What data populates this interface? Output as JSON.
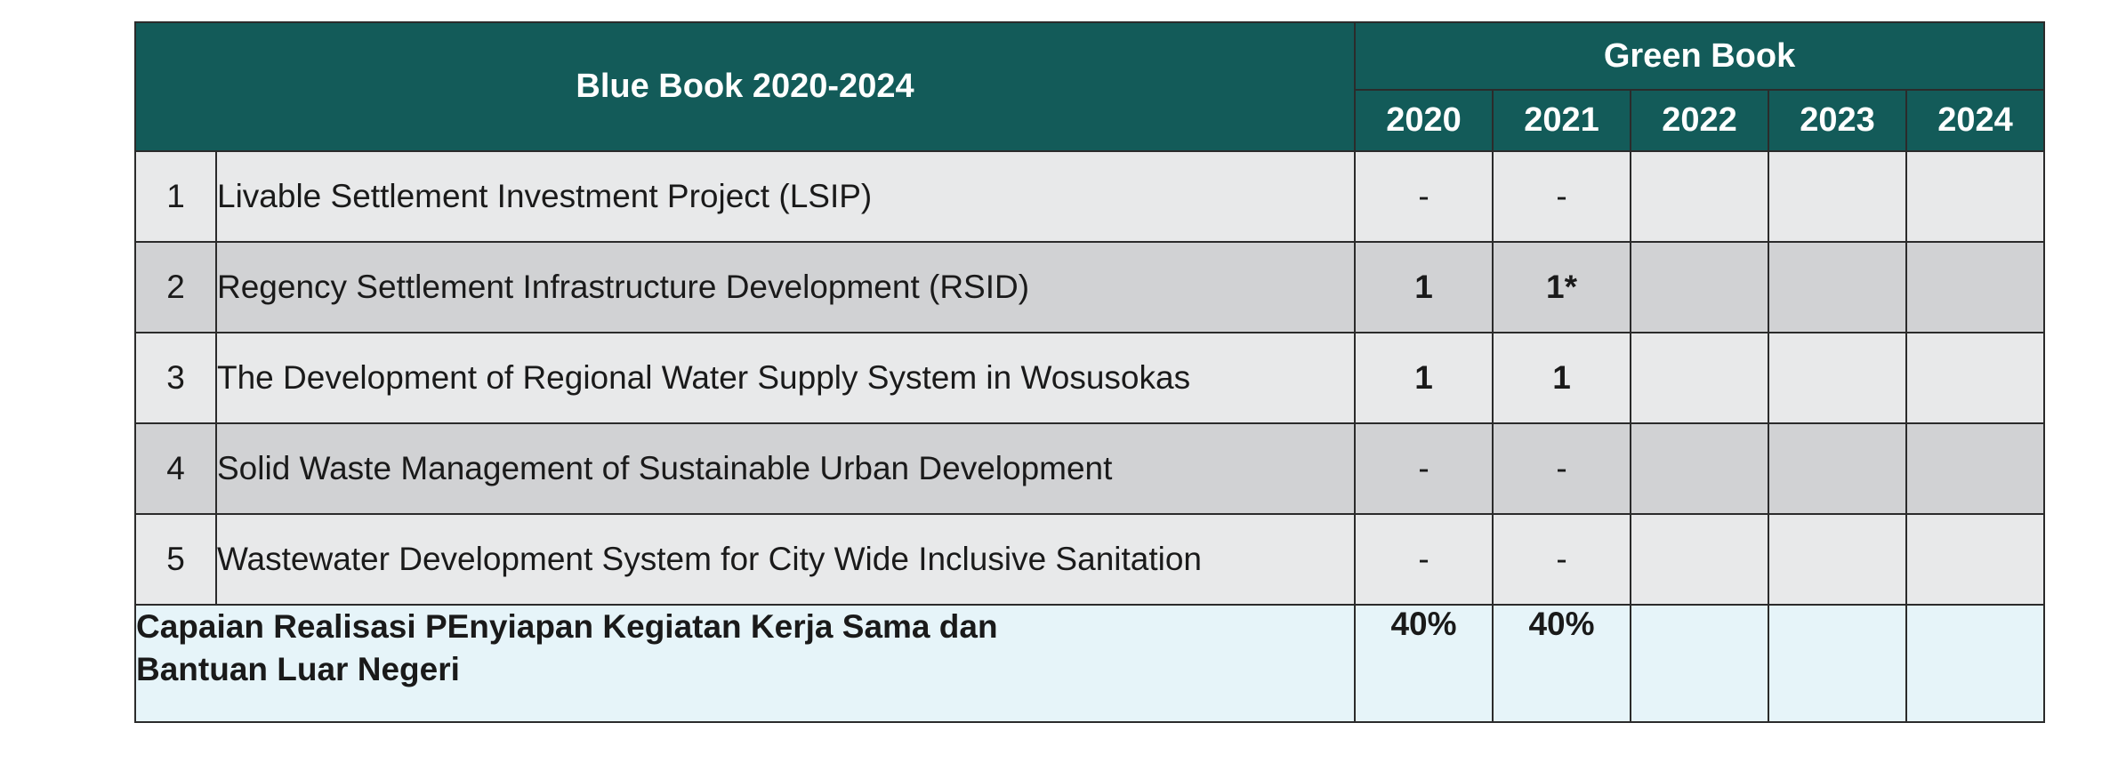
{
  "header": {
    "blue_book_title": "Blue Book 2020-2024",
    "green_book_title": "Green Book",
    "years": [
      "2020",
      "2021",
      "2022",
      "2023",
      "2024"
    ]
  },
  "rows": [
    {
      "no": "1",
      "name": "Livable Settlement Investment Project (LSIP)",
      "values": [
        "-",
        "-",
        "",
        "",
        ""
      ]
    },
    {
      "no": "2",
      "name": "Regency Settlement Infrastructure Development (RSID)",
      "values": [
        "1",
        "1*",
        "",
        "",
        ""
      ]
    },
    {
      "no": "3",
      "name": "The Development of Regional Water Supply System in Wosusokas",
      "values": [
        "1",
        "1",
        "",
        "",
        ""
      ]
    },
    {
      "no": "4",
      "name": "Solid Waste Management of Sustainable Urban Development",
      "values": [
        "-",
        "-",
        "",
        "",
        ""
      ]
    },
    {
      "no": "5",
      "name": "Wastewater Development System for City Wide Inclusive Sanitation",
      "values": [
        "-",
        "-",
        "",
        "",
        ""
      ]
    }
  ],
  "total": {
    "label_line1": "Capaian Realisasi PEnyiapan Kegiatan Kerja Sama dan",
    "label_line2": "Bantuan Luar Negeri",
    "values": [
      "40%",
      "40%",
      "",
      "",
      ""
    ]
  },
  "colors": {
    "header_bg": "#135b59",
    "row_light": "#e8e9ea",
    "row_dark": "#d1d2d4",
    "total_bg": "#e6f4f9"
  }
}
